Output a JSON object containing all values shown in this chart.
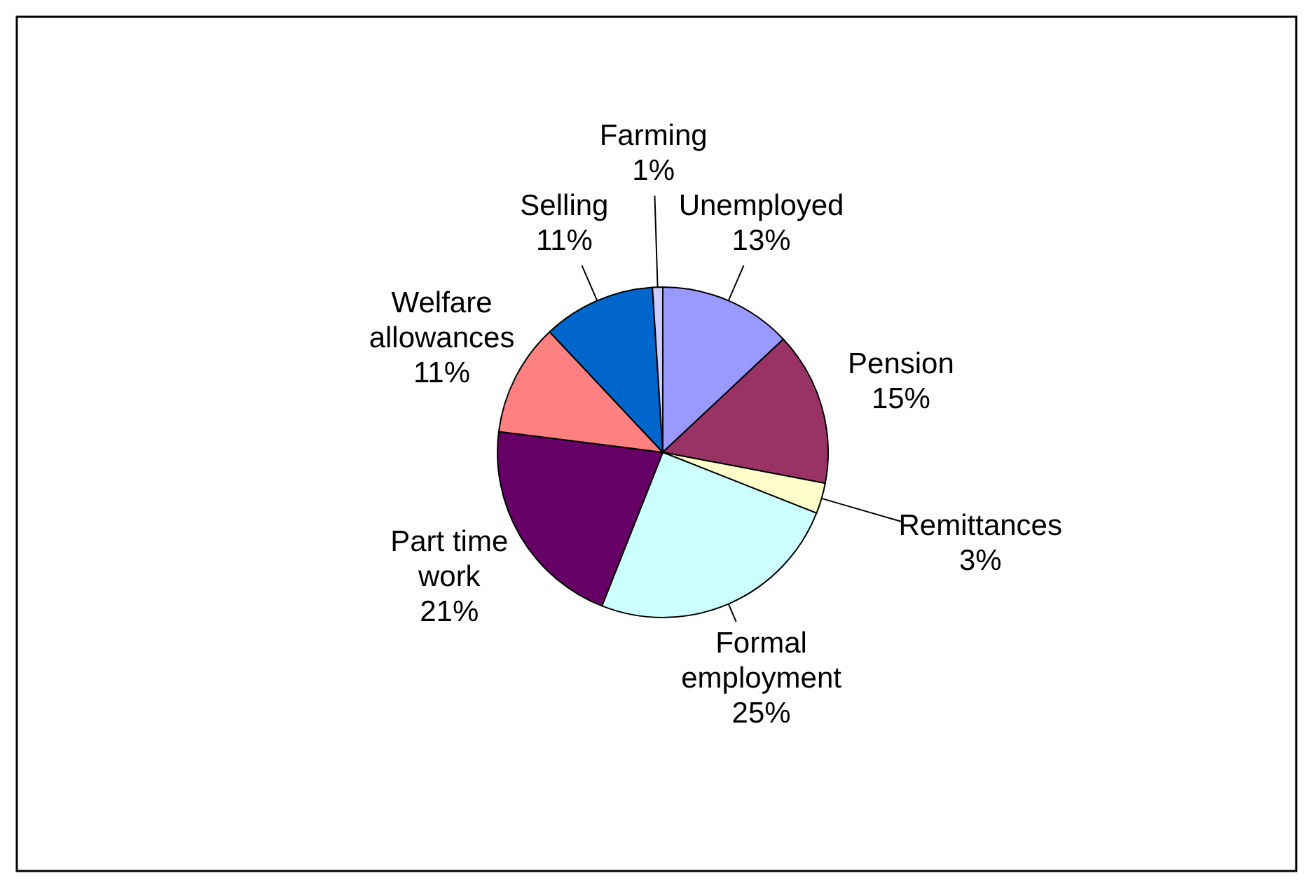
{
  "chart_data": {
    "type": "pie",
    "categories": [
      "Unemployed",
      "Pension",
      "Remittances",
      "Formal employment",
      "Part time work",
      "Welfare allowances",
      "Selling",
      "Farming"
    ],
    "values": [
      13,
      15,
      3,
      25,
      21,
      11,
      11,
      1
    ],
    "colors": [
      "#9999ff",
      "#993366",
      "#ffffcc",
      "#ccffff",
      "#660066",
      "#ff8080",
      "#0066cc",
      "#ccccff"
    ],
    "value_labels": [
      "13%",
      "15%",
      "3%",
      "25%",
      "21%",
      "11%",
      "11%",
      "1%"
    ]
  }
}
